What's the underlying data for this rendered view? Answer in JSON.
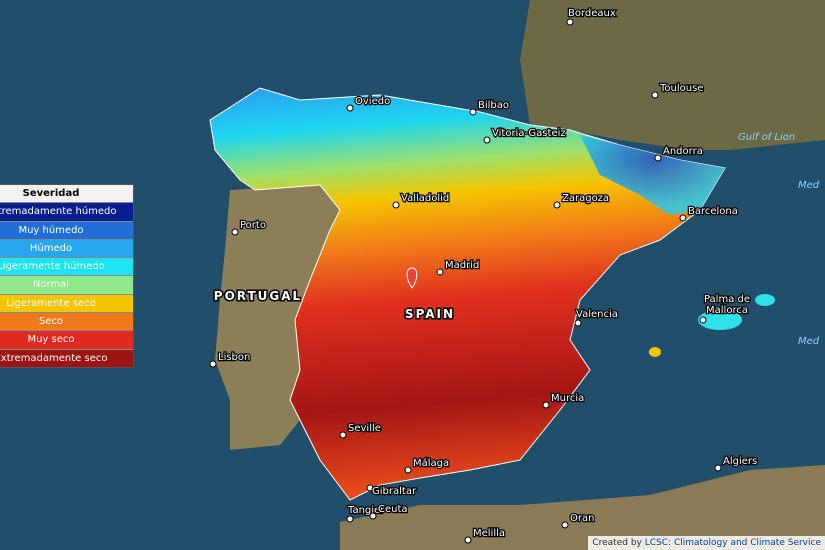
{
  "legend": {
    "title": "Severidad",
    "items": [
      {
        "label": "Extremadamente húmedo",
        "color": "#0a1f8f"
      },
      {
        "label": "Muy húmedo",
        "color": "#1f6fd6"
      },
      {
        "label": "Húmedo",
        "color": "#27a6ef"
      },
      {
        "label": "Ligeramente húmedo",
        "color": "#1fe3f2"
      },
      {
        "label": "Normal",
        "color": "#8fe88a"
      },
      {
        "label": "Ligeramente seco",
        "color": "#f5c400"
      },
      {
        "label": "Seco",
        "color": "#f07a1a"
      },
      {
        "label": "Muy seco",
        "color": "#e02a20"
      },
      {
        "label": "Extremadamente seco",
        "color": "#9c1414"
      }
    ]
  },
  "places": [
    "Bordeaux",
    "Toulouse",
    "Oviedo",
    "Bilbao",
    "Vitoria-Gasteiz",
    "Andorra",
    "Valladolid",
    "Zaragoza",
    "Barcelona",
    "Porto",
    "Madrid",
    "Palma de Mallorca",
    "Valencia",
    "Lisbon",
    "Murcia",
    "Seville",
    "Algiers",
    "Málaga",
    "Gibraltar",
    "Tangier",
    "Ceuta",
    "Oran",
    "Melilla"
  ],
  "countries": [
    "PORTUGAL",
    "SPAIN"
  ],
  "seas": [
    "Gulf of Lion",
    "Med",
    "Med"
  ],
  "attribution": {
    "prefix": "Created by",
    "link": "LCSC: Climatology and Climate Service"
  }
}
